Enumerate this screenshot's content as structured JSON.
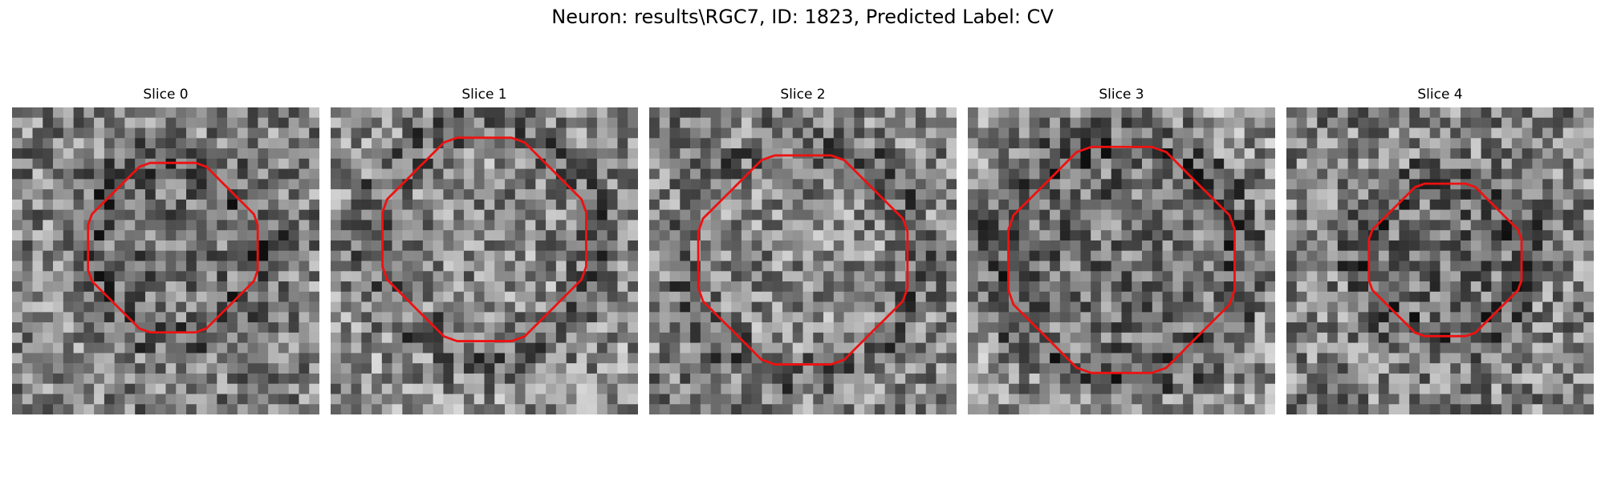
{
  "title": "Neuron: results\\RGC7, ID: 1823, Predicted Label: CV",
  "outline_color": "#ee1111",
  "slices": [
    {
      "label": "Slice 0",
      "seed": 11,
      "radius": 0.3,
      "dark_center": true,
      "vignette": false
    },
    {
      "label": "Slice 1",
      "seed": 23,
      "radius": 0.36,
      "dark_center": false,
      "vignette": true
    },
    {
      "label": "Slice 2",
      "seed": 37,
      "radius": 0.37,
      "dark_center": false,
      "vignette": false
    },
    {
      "label": "Slice 3",
      "seed": 51,
      "radius": 0.4,
      "dark_center": true,
      "vignette": true
    },
    {
      "label": "Slice 4",
      "seed": 67,
      "radius": 0.27,
      "dark_center": true,
      "vignette": false
    }
  ]
}
